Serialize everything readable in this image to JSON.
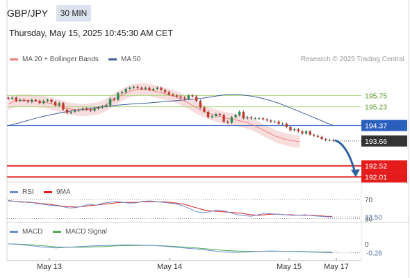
{
  "header": {
    "symbol": "GBP/JPY",
    "timeframe": "30 MIN",
    "datetime": "Thursday, May 15, 2025 10:45:30 AM CET"
  },
  "legend": {
    "ma20": "MA 20 + Bollinger Bands",
    "ma50": "MA 50",
    "credit": "Research © 2025 Trading Central",
    "rsi": "RSI",
    "rsi_ma": "9MA",
    "macd": "MACD",
    "macd_signal": "MACD Signal"
  },
  "colors": {
    "ma20": "#f08080",
    "ma50": "#3a5f9a",
    "bollinger_fill": "#f6d2d2",
    "level_green": "#a9d47a",
    "level_blue": "#2b5fbe",
    "level_red": "#e31b1b",
    "current_price": "#333333",
    "rsi": "#6b8fd4",
    "rsi_ma": "#e31b1b",
    "macd": "#6b8fd4",
    "macd_signal": "#4caf50",
    "arrow": "#2b5fa0"
  },
  "chart_data": [
    {
      "type": "candlestick",
      "x_labels": [
        "May 13",
        "May 14",
        "May 15",
        "May 17"
      ],
      "ylim": [
        191.9,
        197.1
      ],
      "levels": [
        {
          "value": 195.75,
          "label": "195.75",
          "kind": "resistance"
        },
        {
          "value": 195.23,
          "label": "195.23",
          "kind": "resistance"
        },
        {
          "value": 194.37,
          "label": "194.37",
          "kind": "pivot"
        },
        {
          "value": 193.66,
          "label": "193.66",
          "kind": "current"
        },
        {
          "value": 192.52,
          "label": "192.52",
          "kind": "support"
        },
        {
          "value": 192.01,
          "label": "192.01",
          "kind": "support"
        }
      ],
      "current_price": 193.66,
      "close": [
        195.6,
        195.65,
        195.5,
        195.55,
        195.5,
        195.45,
        195.55,
        195.5,
        195.4,
        195.5,
        195.55,
        195.45,
        195.3,
        195.4,
        195.1,
        194.95,
        195.0,
        195.05,
        195.1,
        195.15,
        195.1,
        195.05,
        195.15,
        195.2,
        195.25,
        195.3,
        195.6,
        195.55,
        195.85,
        195.9,
        196.05,
        196.1,
        196.15,
        196.1,
        196.05,
        196.1,
        196.0,
        196.05,
        196.1,
        196.0,
        195.9,
        195.8,
        195.75,
        195.7,
        195.65,
        195.6,
        195.75,
        195.7,
        195.5,
        195.2,
        195.0,
        194.75,
        194.8,
        194.9,
        194.85,
        194.55,
        194.5,
        194.75,
        194.85,
        195.0,
        194.7,
        194.75,
        194.7,
        194.7,
        194.7,
        194.65,
        194.6,
        194.55,
        194.55,
        194.45,
        194.45,
        194.3,
        194.15,
        194.2,
        194.1,
        194.0,
        194.1,
        193.95,
        193.9,
        193.85,
        193.75,
        193.7,
        193.7,
        193.66
      ],
      "ma20": [
        195.35,
        195.45,
        195.5,
        195.52,
        195.53,
        195.52,
        195.5,
        195.48,
        195.45,
        195.42,
        195.38,
        195.33,
        195.28,
        195.22,
        195.16,
        195.12,
        195.1,
        195.08,
        195.08,
        195.1,
        195.12,
        195.15,
        195.2,
        195.3,
        195.42,
        195.55,
        195.67,
        195.78,
        195.87,
        195.95,
        196.0,
        196.03,
        196.04,
        196.02,
        195.98,
        195.93,
        195.88,
        195.83,
        195.78,
        195.73,
        195.66,
        195.57,
        195.47,
        195.36,
        195.25,
        195.14,
        195.05,
        194.97,
        194.9,
        194.84,
        194.78,
        194.73,
        194.69,
        194.65,
        194.62,
        194.58,
        194.53,
        194.47,
        194.39,
        194.3,
        194.2,
        194.1,
        194.0,
        193.9,
        193.83,
        193.77,
        193.72,
        193.68,
        193.65,
        193.63
      ],
      "ma50": [
        194.37,
        194.45,
        194.55,
        194.65,
        194.75,
        194.83,
        194.9,
        194.97,
        195.03,
        195.08,
        195.13,
        195.18,
        195.22,
        195.26,
        195.3,
        195.33,
        195.36,
        195.38,
        195.4,
        195.43,
        195.46,
        195.49,
        195.52,
        195.55,
        195.58,
        195.62,
        195.67,
        195.73,
        195.78,
        195.8,
        195.78,
        195.74,
        195.68,
        195.6,
        195.5,
        195.38,
        195.24,
        195.1,
        194.95,
        194.8,
        194.66,
        194.5,
        194.37
      ]
    },
    {
      "type": "line",
      "name": "RSI",
      "ylim": [
        25,
        80
      ],
      "ticks": [
        70,
        30
      ],
      "current_label": "33.50",
      "rsi": [
        68,
        66,
        64,
        65,
        62,
        60,
        58,
        57,
        55,
        52,
        53,
        56,
        60,
        58,
        62,
        64,
        66,
        64,
        62,
        63,
        66,
        67,
        65,
        64,
        62,
        60,
        56,
        50,
        44,
        42,
        45,
        48,
        46,
        42,
        38,
        36,
        35,
        38,
        41,
        40,
        39,
        38,
        37,
        37,
        38,
        36,
        35,
        34,
        33.5
      ],
      "rsi_ma": [
        67,
        66,
        65,
        64,
        63,
        61,
        60,
        58,
        56,
        55,
        54,
        55,
        57,
        58,
        60,
        61,
        63,
        64,
        64,
        64,
        65,
        65,
        65,
        65,
        64,
        62,
        60,
        56,
        52,
        48,
        46,
        45,
        44,
        43,
        42,
        40,
        38,
        37,
        38,
        39,
        39,
        38,
        38,
        37,
        37,
        37,
        36,
        35,
        34.5
      ]
    },
    {
      "type": "line",
      "name": "MACD",
      "ylim": [
        -0.35,
        0.12
      ],
      "ticks": [
        0
      ],
      "current_label": "-0.26",
      "macd": [
        0.0,
        -0.02,
        -0.06,
        -0.1,
        -0.12,
        -0.1,
        -0.08,
        -0.06,
        -0.05,
        -0.04,
        -0.03,
        -0.04,
        -0.05,
        -0.07,
        -0.1,
        -0.13,
        -0.16,
        -0.2,
        -0.24,
        -0.25,
        -0.24,
        -0.22,
        -0.21,
        -0.22,
        -0.23,
        -0.24,
        -0.25,
        -0.26
      ],
      "macd_signal": [
        0.0,
        -0.01,
        -0.03,
        -0.06,
        -0.09,
        -0.1,
        -0.1,
        -0.09,
        -0.08,
        -0.06,
        -0.05,
        -0.05,
        -0.05,
        -0.06,
        -0.08,
        -0.1,
        -0.13,
        -0.16,
        -0.19,
        -0.21,
        -0.22,
        -0.22,
        -0.22,
        -0.22,
        -0.22,
        -0.23,
        -0.24,
        -0.245
      ]
    }
  ]
}
